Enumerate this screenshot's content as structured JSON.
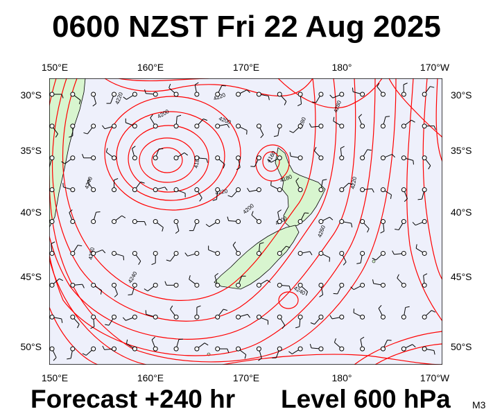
{
  "title": "0600 NZST Fri 22 Aug 2025",
  "footer": {
    "forecast": "Forecast +240 hr",
    "level": "Level 600 hPa",
    "model": "M3"
  },
  "axes": {
    "longitude_labels": [
      "150°E",
      "160°E",
      "170°E",
      "180°",
      "170°W"
    ],
    "latitude_labels": [
      "30°S",
      "35°S",
      "40°S",
      "45°S",
      "50°S"
    ]
  },
  "contour_labels": [
    "4220",
    "4200",
    "4180",
    "4160",
    "4220",
    "4200",
    "4260",
    "4240",
    "4240",
    "4220",
    "4200",
    "4180",
    "4200",
    "4220",
    "4240",
    "4260",
    "4280",
    "4280"
  ],
  "colors": {
    "sea": "#eef0fb",
    "land": "#d8f5cf",
    "contour": "#ff0000",
    "barb": "#000000"
  }
}
